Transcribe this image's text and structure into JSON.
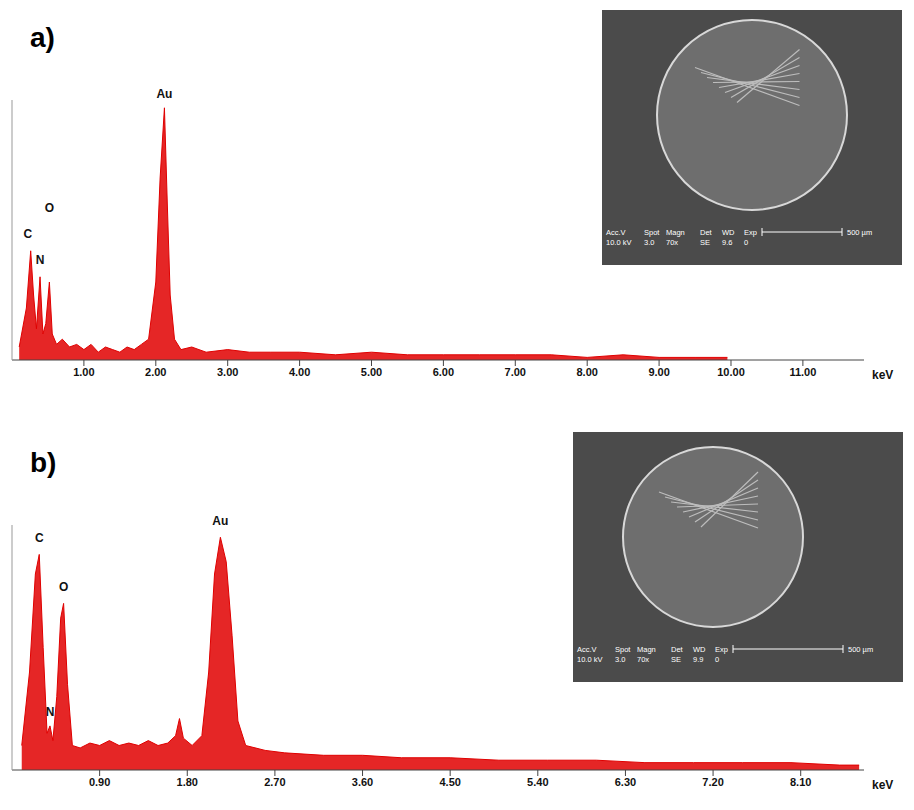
{
  "chart_data": [
    {
      "type": "area",
      "title": "a)",
      "xlabel": "keV",
      "color": "#e00000",
      "grid": false,
      "tick_labels": "x",
      "xlim": [
        0,
        11.85
      ],
      "xticks": [
        {
          "value": 1,
          "label": "1.00"
        },
        {
          "value": 2,
          "label": "2.00"
        },
        {
          "value": 3,
          "label": "3.00"
        },
        {
          "value": 4,
          "label": "4.00"
        },
        {
          "value": 5,
          "label": "5.00"
        },
        {
          "value": 6,
          "label": "6.00"
        },
        {
          "value": 7,
          "label": "7.00"
        },
        {
          "value": 8,
          "label": "8.00"
        },
        {
          "value": 9,
          "label": "9.00"
        },
        {
          "value": 10,
          "label": "10.00"
        },
        {
          "value": 11,
          "label": "11.00"
        }
      ],
      "ylim": [
        0,
        100
      ],
      "yticks": [],
      "x": [
        0.1,
        0.2,
        0.26,
        0.3,
        0.34,
        0.39,
        0.43,
        0.47,
        0.52,
        0.56,
        0.62,
        0.7,
        0.8,
        0.9,
        1.0,
        1.1,
        1.2,
        1.3,
        1.4,
        1.5,
        1.6,
        1.7,
        1.8,
        1.9,
        2.0,
        2.06,
        2.12,
        2.16,
        2.2,
        2.26,
        2.35,
        2.5,
        2.7,
        3.0,
        3.3,
        3.6,
        4.0,
        4.5,
        5.0,
        5.5,
        6.0,
        6.5,
        7.0,
        7.5,
        8.0,
        8.5,
        9.0,
        9.5,
        9.95
      ],
      "values": [
        5,
        20,
        42,
        25,
        12,
        32,
        10,
        14,
        30,
        10,
        6,
        8,
        5,
        6,
        4,
        6,
        3,
        5,
        4,
        3,
        5,
        4,
        6,
        8,
        30,
        70,
        97,
        60,
        25,
        8,
        4,
        5,
        3,
        4,
        3,
        3,
        3,
        2,
        3,
        2,
        2,
        2,
        2,
        2,
        1,
        2,
        1,
        1,
        1
      ],
      "annotations": [
        {
          "text": "C",
          "x": 0.22,
          "y": 45
        },
        {
          "text": "N",
          "x": 0.39,
          "y": 35
        },
        {
          "text": "O",
          "x": 0.52,
          "y": 55
        },
        {
          "text": "Au",
          "x": 2.12,
          "y": 99
        }
      ],
      "inset": {
        "header": [
          "Acc.V",
          "Spot",
          "Magn",
          "Det",
          "WD",
          "Exp"
        ],
        "values": [
          "10.0 kV",
          "3.0",
          "70x",
          "SE",
          "9.6",
          "0"
        ],
        "scale_bar": "500 µm"
      }
    },
    {
      "type": "area",
      "title": "b)",
      "xlabel": "keV",
      "color": "#e00000",
      "grid": false,
      "tick_labels": "x",
      "xlim": [
        0,
        8.75
      ],
      "xticks": [
        {
          "value": 0.9,
          "label": "0.90"
        },
        {
          "value": 1.8,
          "label": "1.80"
        },
        {
          "value": 2.7,
          "label": "2.70"
        },
        {
          "value": 3.6,
          "label": "3.60"
        },
        {
          "value": 4.5,
          "label": "4.50"
        },
        {
          "value": 5.4,
          "label": "5.40"
        },
        {
          "value": 6.3,
          "label": "6.30"
        },
        {
          "value": 7.2,
          "label": "7.20"
        },
        {
          "value": 8.1,
          "label": "8.10"
        }
      ],
      "ylim": [
        0,
        100
      ],
      "yticks": [],
      "x": [
        0.1,
        0.18,
        0.24,
        0.28,
        0.32,
        0.36,
        0.39,
        0.42,
        0.46,
        0.5,
        0.53,
        0.57,
        0.62,
        0.7,
        0.8,
        0.9,
        1.0,
        1.1,
        1.2,
        1.3,
        1.4,
        1.5,
        1.6,
        1.68,
        1.72,
        1.76,
        1.85,
        1.95,
        2.02,
        2.08,
        2.14,
        2.2,
        2.26,
        2.32,
        2.4,
        2.6,
        2.8,
        3.2,
        3.6,
        4.0,
        4.5,
        5.0,
        5.5,
        6.0,
        6.5,
        7.0,
        7.5,
        8.0,
        8.5,
        8.7
      ],
      "values": [
        10,
        40,
        80,
        88,
        50,
        15,
        18,
        12,
        30,
        62,
        68,
        35,
        10,
        9,
        11,
        10,
        12,
        10,
        11,
        10,
        12,
        10,
        11,
        14,
        21,
        13,
        10,
        14,
        40,
        80,
        95,
        85,
        55,
        20,
        10,
        8,
        7,
        6,
        6,
        5,
        5,
        4,
        4,
        4,
        3,
        3,
        3,
        3,
        2,
        2
      ],
      "annotations": [
        {
          "text": "C",
          "x": 0.28,
          "y": 91
        },
        {
          "text": "N",
          "x": 0.39,
          "y": 20
        },
        {
          "text": "O",
          "x": 0.53,
          "y": 71
        },
        {
          "text": "Au",
          "x": 2.14,
          "y": 98
        }
      ],
      "inset": {
        "header": [
          "Acc.V",
          "Spot",
          "Magn",
          "Det",
          "WD",
          "Exp"
        ],
        "values": [
          "10.0 kV",
          "3.0",
          "70x",
          "SE",
          "9.9",
          "0"
        ],
        "scale_bar": "500 µm"
      }
    }
  ]
}
